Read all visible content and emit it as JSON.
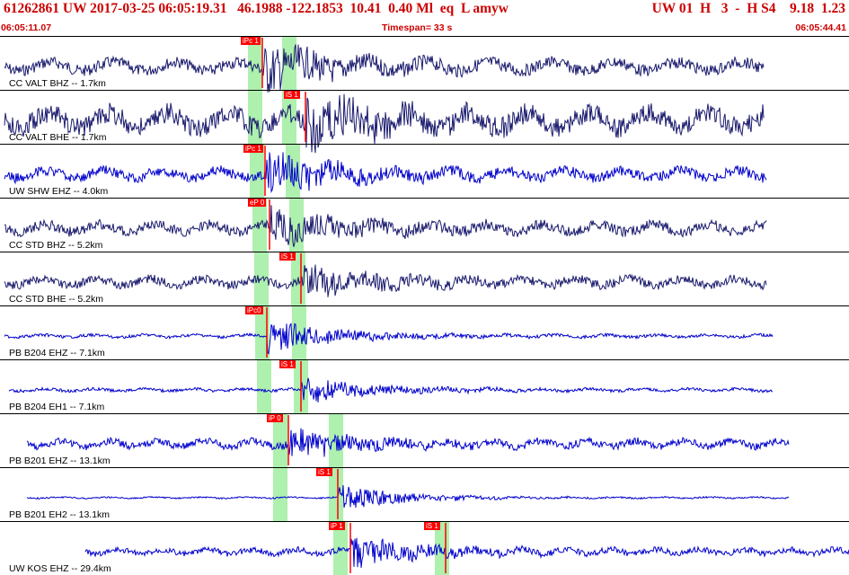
{
  "header": {
    "title": "61262861 UW 2017-03-25 06:05:19.31   46.1988 -122.1853  10.41  0.40 Ml  eq  L amyw",
    "right": "UW 01  H   3  -  H S4    9.18  1.23",
    "start_time": "06:05:11.07",
    "timespan": "Timespan=  33 s",
    "end_time": "06:05:44.41"
  },
  "colors": {
    "header_text": "#cc0000",
    "pick_flag": "#ff0000",
    "pick_window": "#aef0ae",
    "trace_dark": "#1a1a6e",
    "trace_blue": "#0000cc"
  },
  "traces": [
    {
      "label": "CC VALT BHZ -- 1.7km",
      "color": "#1a1a6e",
      "picks": [
        {
          "text": "iPc 1"
        }
      ]
    },
    {
      "label": "CC VALT BHE -- 1.7km",
      "color": "#1a1a6e",
      "picks": [
        {
          "text": "iS 1"
        }
      ]
    },
    {
      "label": "UW SHW EHZ -- 4.0km",
      "color": "#0000cc",
      "picks": [
        {
          "text": "iPc 1"
        }
      ]
    },
    {
      "label": "CC STD BHZ -- 5.2km",
      "color": "#1a1a6e",
      "picks": [
        {
          "text": "eP 0"
        }
      ]
    },
    {
      "label": "CC STD BHE -- 5.2km",
      "color": "#1a1a6e",
      "picks": [
        {
          "text": "iS 1"
        }
      ]
    },
    {
      "label": "PB B204 EHZ -- 7.1km",
      "color": "#0000cc",
      "picks": [
        {
          "text": "iPc0"
        }
      ]
    },
    {
      "label": "PB B204 EH1 -- 7.1km",
      "color": "#0000cc",
      "picks": [
        {
          "text": "iS 1"
        }
      ]
    },
    {
      "label": "PB B201 EHZ -- 13.1km",
      "color": "#0000cc",
      "picks": [
        {
          "text": "iP 0"
        }
      ]
    },
    {
      "label": "PB B201 EH2 -- 13.1km",
      "color": "#0000cc",
      "picks": [
        {
          "text": "iS 1"
        }
      ]
    },
    {
      "label": "UW KOS EHZ -- 29.4km",
      "color": "#0000cc",
      "picks": [
        {
          "text": "iP 1"
        },
        {
          "text": "iS 1"
        }
      ]
    }
  ]
}
